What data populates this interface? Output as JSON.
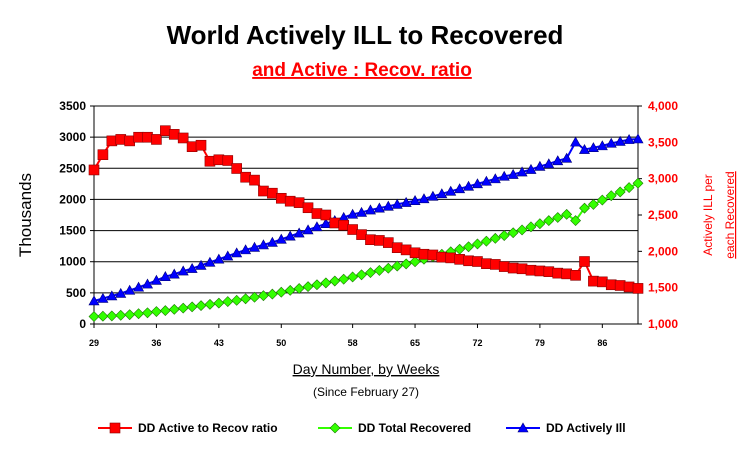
{
  "chart_data": {
    "type": "line",
    "title": "World Actively ILL to Recovered",
    "subtitle": "and Active : Recov. ratio",
    "xlabel": "Day Number, by Weeks",
    "xlabel_note": "(Since February 27)",
    "ylabel_left": "Thousands",
    "ylabel_right_line1": "Actively ILL per",
    "ylabel_right_line2": "each Recovered",
    "x_ticks": [
      "29",
      "36",
      "43",
      "50",
      "58",
      "65",
      "72",
      "79",
      "86"
    ],
    "y_left_ticks": [
      "0",
      "500",
      "1000",
      "1500",
      "2000",
      "2500",
      "3000",
      "3500"
    ],
    "y_right_ticks": [
      "1,000",
      "1,500",
      "2,000",
      "2,500",
      "3,000",
      "3,500",
      "4,000"
    ],
    "ylim_left": [
      0,
      3500
    ],
    "ylim_right": [
      1000,
      4000
    ],
    "xlim": [
      29,
      90
    ],
    "grid": "horizontal",
    "legend_position": "bottom",
    "title_color": "#000000",
    "subtitle_color": "#ff0000",
    "right_axis_color": "#ff0000",
    "x": [
      29,
      30,
      31,
      32,
      33,
      34,
      35,
      36,
      37,
      38,
      39,
      40,
      41,
      42,
      43,
      44,
      45,
      46,
      47,
      48,
      49,
      50,
      51,
      52,
      53,
      54,
      55,
      56,
      57,
      58,
      59,
      60,
      61,
      62,
      63,
      64,
      65,
      66,
      67,
      68,
      69,
      70,
      71,
      72,
      73,
      74,
      75,
      76,
      77,
      78,
      79,
      80,
      81,
      82,
      83,
      84,
      85,
      86,
      87,
      88,
      89,
      90
    ],
    "series": [
      {
        "name": "DD Active to Recov ratio",
        "axis": "right",
        "color": "#ff0000",
        "marker": "square",
        "values": [
          3120,
          3330,
          3520,
          3540,
          3520,
          3570,
          3570,
          3540,
          3660,
          3610,
          3560,
          3440,
          3460,
          3240,
          3260,
          3250,
          3140,
          3020,
          2980,
          2830,
          2800,
          2730,
          2690,
          2670,
          2600,
          2520,
          2500,
          2390,
          2360,
          2300,
          2230,
          2160,
          2150,
          2120,
          2050,
          2020,
          1980,
          1960,
          1950,
          1920,
          1910,
          1890,
          1870,
          1860,
          1830,
          1820,
          1790,
          1770,
          1760,
          1740,
          1730,
          1720,
          1700,
          1690,
          1670,
          1860,
          1590,
          1580,
          1540,
          1530,
          1510,
          1490
        ]
      },
      {
        "name": "DD Total Recovered",
        "axis": "left",
        "color": "#33ff00",
        "marker": "diamond",
        "values": [
          120,
          125,
          130,
          140,
          150,
          165,
          180,
          200,
          215,
          235,
          255,
          275,
          295,
          315,
          335,
          360,
          380,
          405,
          430,
          455,
          480,
          510,
          540,
          570,
          600,
          630,
          660,
          690,
          720,
          755,
          790,
          825,
          860,
          895,
          930,
          965,
          1000,
          1040,
          1080,
          1120,
          1160,
          1200,
          1240,
          1285,
          1330,
          1375,
          1420,
          1465,
          1510,
          1560,
          1610,
          1660,
          1710,
          1760,
          1660,
          1860,
          1920,
          1990,
          2060,
          2120,
          2190,
          2260
        ]
      },
      {
        "name": "DD Actively Ill",
        "axis": "left",
        "color": "#0000ff",
        "marker": "triangle",
        "values": [
          370,
          410,
          450,
          490,
          540,
          590,
          640,
          700,
          760,
          800,
          850,
          890,
          940,
          990,
          1040,
          1090,
          1140,
          1190,
          1230,
          1270,
          1310,
          1360,
          1410,
          1460,
          1510,
          1560,
          1610,
          1660,
          1710,
          1760,
          1790,
          1830,
          1860,
          1890,
          1920,
          1950,
          1980,
          2010,
          2050,
          2090,
          2130,
          2170,
          2210,
          2250,
          2290,
          2330,
          2370,
          2400,
          2440,
          2480,
          2530,
          2570,
          2620,
          2660,
          2920,
          2800,
          2830,
          2860,
          2900,
          2930,
          2960,
          2970
        ]
      }
    ]
  }
}
